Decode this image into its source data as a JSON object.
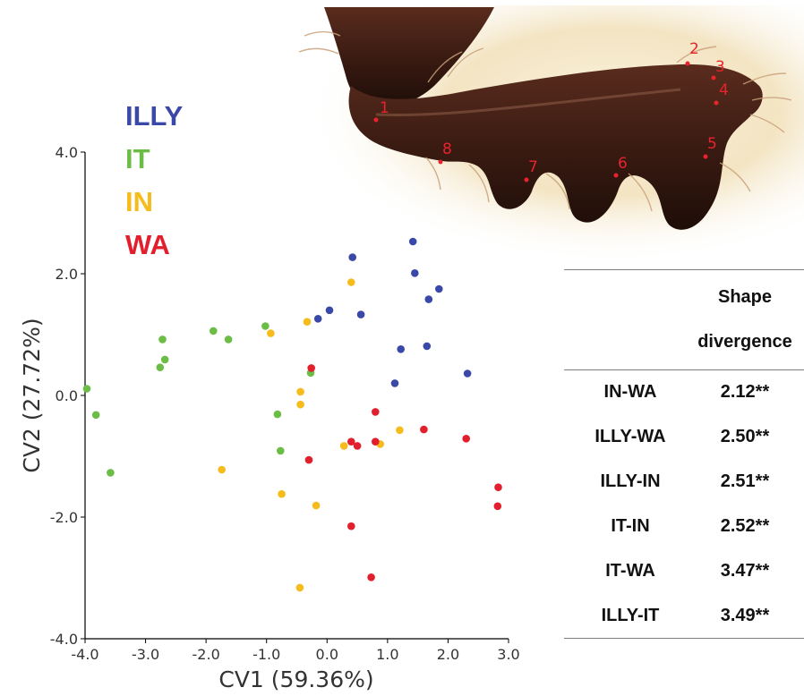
{
  "chart_data": {
    "type": "scatter",
    "xlabel": "CV1 (59.36%)",
    "ylabel": "CV2 (27.72%)",
    "xlim": [
      -4.0,
      3.0
    ],
    "ylim": [
      -4.0,
      4.0
    ],
    "xticks": [
      "-4.0",
      "-3.0",
      "-2.0",
      "-1.0",
      "0.0",
      "1.0",
      "2.0",
      "3.0"
    ],
    "yticks": [
      "-4.0",
      "-2.0",
      "0.0",
      "2.0",
      "4.0"
    ],
    "xtick_values": [
      -4,
      -3,
      -2,
      -1,
      0,
      1,
      2,
      3
    ],
    "ytick_values": [
      -4,
      -2,
      0,
      2,
      4
    ],
    "grid": false,
    "legend_position": "top-left",
    "series": [
      {
        "name": "ILLY",
        "color": "#3a48a8",
        "points": [
          [
            0.42,
            2.27
          ],
          [
            1.42,
            2.53
          ],
          [
            1.45,
            2.01
          ],
          [
            1.85,
            1.75
          ],
          [
            1.68,
            1.58
          ],
          [
            0.04,
            1.4
          ],
          [
            -0.15,
            1.26
          ],
          [
            0.56,
            1.33
          ],
          [
            1.22,
            0.76
          ],
          [
            1.65,
            0.81
          ],
          [
            2.32,
            0.36
          ],
          [
            1.12,
            0.2
          ]
        ]
      },
      {
        "name": "IT",
        "color": "#6cbd45",
        "points": [
          [
            -3.97,
            0.11
          ],
          [
            -3.82,
            -0.32
          ],
          [
            -3.58,
            -1.27
          ],
          [
            -2.72,
            0.92
          ],
          [
            -2.76,
            0.46
          ],
          [
            -2.68,
            0.59
          ],
          [
            -1.88,
            1.06
          ],
          [
            -1.63,
            0.92
          ],
          [
            -1.02,
            1.14
          ],
          [
            -0.82,
            -0.31
          ],
          [
            -0.77,
            -0.91
          ],
          [
            -0.27,
            0.37
          ]
        ]
      },
      {
        "name": "IN",
        "color": "#f5bc1b",
        "points": [
          [
            0.4,
            1.86
          ],
          [
            -0.33,
            1.21
          ],
          [
            -0.93,
            1.02
          ],
          [
            -0.44,
            0.06
          ],
          [
            -0.44,
            -0.15
          ],
          [
            -1.74,
            -1.22
          ],
          [
            -0.75,
            -1.62
          ],
          [
            -0.18,
            -1.81
          ],
          [
            -0.45,
            -3.16
          ],
          [
            0.28,
            -0.83
          ],
          [
            0.88,
            -0.8
          ],
          [
            1.2,
            -0.57
          ]
        ]
      },
      {
        "name": "WA",
        "color": "#e21f2c",
        "points": [
          [
            -0.26,
            0.45
          ],
          [
            0.8,
            -0.27
          ],
          [
            1.6,
            -0.56
          ],
          [
            2.3,
            -0.71
          ],
          [
            0.4,
            -0.76
          ],
          [
            0.5,
            -0.83
          ],
          [
            0.8,
            -0.76
          ],
          [
            -0.3,
            -1.06
          ],
          [
            2.83,
            -1.51
          ],
          [
            2.82,
            -1.82
          ],
          [
            0.4,
            -2.15
          ],
          [
            0.73,
            -2.99
          ]
        ]
      }
    ]
  },
  "photo": {
    "landmarks": [
      "1",
      "2",
      "3",
      "4",
      "5",
      "6",
      "7",
      "8"
    ],
    "landmark_color": "#e8232c"
  },
  "table": {
    "header_line1": "Shape",
    "header_line2": "divergence",
    "rows": [
      {
        "pair": "IN-WA",
        "value": "2.12**"
      },
      {
        "pair": "ILLY-WA",
        "value": "2.50**"
      },
      {
        "pair": "ILLY-IN",
        "value": "2.51**"
      },
      {
        "pair": "IT-IN",
        "value": "2.52**"
      },
      {
        "pair": "IT-WA",
        "value": "3.47**"
      },
      {
        "pair": "ILLY-IT",
        "value": "3.49**"
      }
    ]
  }
}
